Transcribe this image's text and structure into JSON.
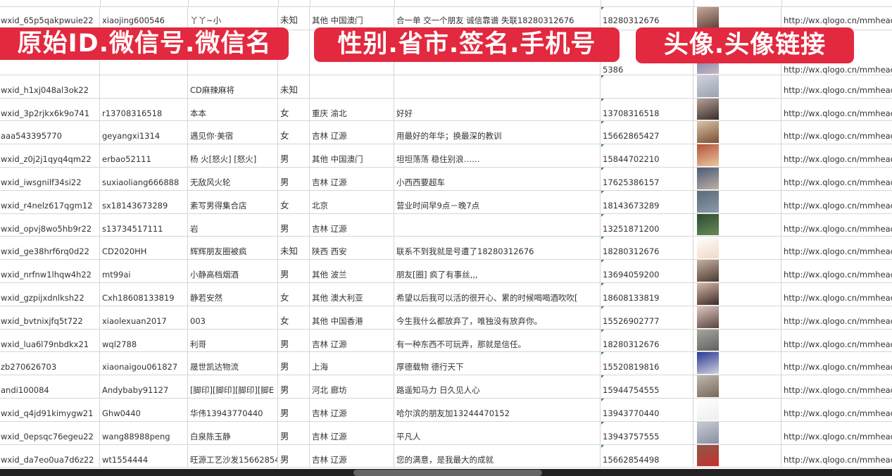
{
  "overlays": {
    "label_1": "原始ID.微信号.微信名",
    "label_2": "性别.省市.签名.手机号",
    "label_3": "头像.头像链接",
    "color": "#e2293f"
  },
  "rows": [
    {
      "id": "wxid_65p5qakpwuie22",
      "wechat": "xiaojing600546",
      "name": "丫丫~小",
      "gender": "未知",
      "region": "其他 中国澳门",
      "signature": "合一单 交一个朋友 诚信靠谱 失联18280312676",
      "phone": "18280312676",
      "avatar": [
        "#caa99a",
        "#5a4038"
      ],
      "link": "http://wx.qlogo.cn/mmhead"
    },
    {
      "id": "",
      "wechat": "",
      "name": "",
      "gender": "",
      "region": "",
      "signature": "",
      "phone": "5386",
      "avatar": [
        "#6a74a8",
        "#c9b7c0"
      ],
      "link": "http://wx.qlogo.cn/mmhead"
    },
    {
      "id": "wxid_h1xj048al3ok22",
      "wechat": "",
      "name": "CD麻辣麻将",
      "gender": "未知",
      "region": "",
      "signature": "",
      "phone": "",
      "avatar": [
        "#cfd3dc",
        "#9aa2b2"
      ],
      "link": "http://wx.qlogo.cn/mmhead"
    },
    {
      "id": "wxid_3p2rjkx6k9o741",
      "wechat": "r13708316518",
      "name": "本本",
      "gender": "女",
      "region": "重庆 渝北",
      "signature": "好好",
      "phone": "13708316518",
      "avatar": [
        "#b8a49a",
        "#3a2c28"
      ],
      "link": "http://wx.qlogo.cn/mmhead"
    },
    {
      "id": "aaa543395770",
      "wechat": "geyangxi1314",
      "name": "遇见你·美宿",
      "gender": "女",
      "region": "吉林 辽源",
      "signature": "用最好的年华；换最深的教训",
      "phone": "15662865427",
      "avatar": [
        "#d9c4a8",
        "#7a4e30"
      ],
      "link": "http://wx.qlogo.cn/mmhead"
    },
    {
      "id": "wxid_z0j2j1qyq4qm22",
      "wechat": "erbao52111",
      "name": "杨 火[怒火] [怒火]",
      "gender": "男",
      "region": "其他 中国澳门",
      "signature": "坦坦荡荡 稳住别浪……",
      "phone": "15844702210",
      "avatar": [
        "#b4523a",
        "#e8c8a0"
      ],
      "link": "http://wx.qlogo.cn/mmhead"
    },
    {
      "id": "wxid_iwsgnilf34si22",
      "wechat": "suxiaoliang666888",
      "name": "无敌风火轮",
      "gender": "男",
      "region": "吉林 辽源",
      "signature": "小西西要超车",
      "phone": "17625386157",
      "avatar": [
        "#4a5a78",
        "#c0b0a0"
      ],
      "link": "http://wx.qlogo.cn/mmhead"
    },
    {
      "id": "wxid_r4nelz617qgm12",
      "wechat": "sx18143673289",
      "name": "素写男得集合店",
      "gender": "女",
      "region": "北京",
      "signature": "营业时间早9点－晚7点",
      "phone": "18143673289",
      "avatar": [
        "#5a6a7a",
        "#8a9aa8"
      ],
      "link": "http://wx.qlogo.cn/mmhead"
    },
    {
      "id": "wxid_opvj8wo5hb9r22",
      "wechat": "s13734517111",
      "name": "岩",
      "gender": "男",
      "region": "吉林 辽源",
      "signature": "",
      "phone": "13251871200",
      "avatar": [
        "#2a4a30",
        "#6a8a58"
      ],
      "link": "http://wx.qlogo.cn/mmhead"
    },
    {
      "id": "wxid_ge38hrf6rq0d22",
      "wechat": "CD2020HH",
      "name": "辉辉朋友圈被疯",
      "gender": "未知",
      "region": "陕西 西安",
      "signature": "联系不到我就是号遭了18280312676",
      "phone": "18280312676",
      "avatar": [
        "#ffffff",
        "#f0d8c8"
      ],
      "link": "http://wx.qlogo.cn/mmhead"
    },
    {
      "id": "wxid_nrfnw1lhqw4h22",
      "wechat": "mt99ai",
      "name": "小静高档烟酒",
      "gender": "男",
      "region": "其他 波兰",
      "signature": "朋友[圈] 疯了有事丝,,,",
      "phone": "13694059200",
      "avatar": [
        "#c8b0a0",
        "#4a3a30"
      ],
      "link": "http://wx.qlogo.cn/mmhead"
    },
    {
      "id": "wxid_gzpijxdnlksh22",
      "wechat": "Cxh18608133819",
      "name": "静若安然",
      "gender": "女",
      "region": "其他 澳大利亚",
      "signature": "希望以后我可以活的很开心、累的时候喝喝酒吹吹[",
      "phone": "18608133819",
      "avatar": [
        "#d8b8a8",
        "#3a2a28"
      ],
      "link": "http://wx.qlogo.cn/mmhead"
    },
    {
      "id": "wxid_bvtnixjfq5t722",
      "wechat": "xiaolexuan2017",
      "name": "003",
      "gender": "女",
      "region": "其他 中国香港",
      "signature": "今生我什么都放弃了，唯独没有放弃你。",
      "phone": "15526902777",
      "avatar": [
        "#e0c8c0",
        "#5a4440"
      ],
      "link": "http://wx.qlogo.cn/mmhead"
    },
    {
      "id": "wxid_lua6l79nbdkx21",
      "wechat": "wql2788",
      "name": "利哥",
      "gender": "男",
      "region": "吉林 辽源",
      "signature": "有一种东西不可玩弄，那就是信任。",
      "phone": "18280312676",
      "avatar": [
        "#a8a8a0",
        "#606060"
      ],
      "link": "http://wx.qlogo.cn/mmhead"
    },
    {
      "id": "zb270626703",
      "wechat": "xiaonaigou061827",
      "name": "晟世凯达物流",
      "gender": "男",
      "region": "上海",
      "signature": "厚德载物 德行天下",
      "phone": "15520819816",
      "avatar": [
        "#2a3a9a",
        "#d0d0d8"
      ],
      "link": "http://wx.qlogo.cn/mmhead"
    },
    {
      "id": "andi100084",
      "wechat": "Andybaby91127",
      "name": "[脚印][脚印][脚印][脚E",
      "gender": "男",
      "region": "河北 廊坊",
      "signature": "路遥知马力 日久见人心",
      "phone": "15944754555",
      "avatar": [
        "#c0b8b0",
        "#786858"
      ],
      "link": "http://wx.qlogo.cn/mmhead"
    },
    {
      "id": "wxid_q4jd91kimygw21",
      "wechat": "Ghw0440",
      "name": "华伟13943770440",
      "gender": "男",
      "region": "吉林 辽源",
      "signature": "哈尔滨的朋友加13244470152",
      "phone": "13943770440",
      "avatar": [
        "#ffffff",
        "#eeeeee"
      ],
      "link": "http://wx.qlogo.cn/mmhead"
    },
    {
      "id": "wxid_0epsqc76egeu22",
      "wechat": "wang88988peng",
      "name": "白泉陈玉静",
      "gender": "男",
      "region": "吉林 辽源",
      "signature": "平凡人",
      "phone": "13943757555",
      "avatar": [
        "#c8ccd4",
        "#8890a0"
      ],
      "link": "http://wx.qlogo.cn/mmhead"
    },
    {
      "id": "wxid_da7eo0ua7d6z22",
      "wechat": "wt1554444",
      "name": "旺源工艺沙发15662854",
      "gender": "男",
      "region": "吉林 辽源",
      "signature": "您的满意，是我最大的成就",
      "phone": "15662854498",
      "avatar": [
        "#8a5a48",
        "#c83030"
      ],
      "link": "http://wx.qlogo.cn/mmhead"
    }
  ]
}
